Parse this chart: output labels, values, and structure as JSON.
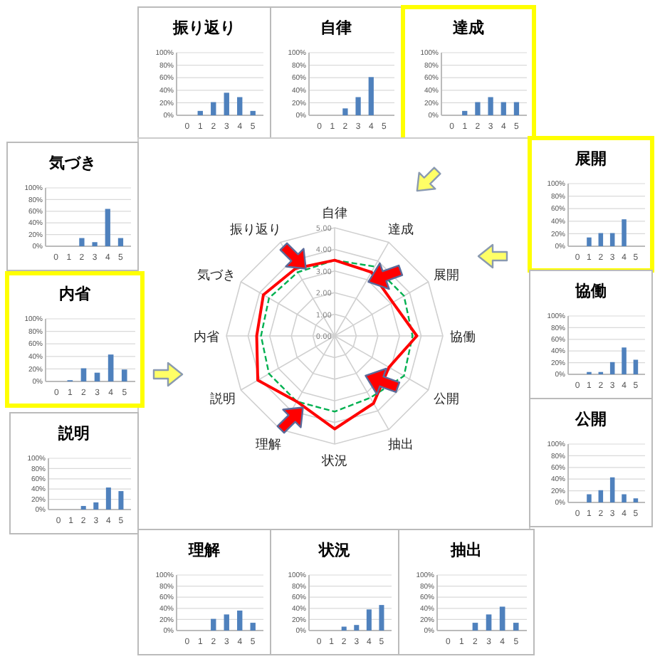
{
  "chart_data": [
    {
      "type": "bar",
      "title": "振り返り",
      "categories": [
        "0",
        "1",
        "2",
        "3",
        "4",
        "5"
      ],
      "values": [
        0,
        7,
        21,
        36,
        29,
        7
      ],
      "color": "#4f81bd",
      "ylim": [
        0,
        100
      ],
      "yticks": [
        {
          "value": 0,
          "label": "0%"
        },
        {
          "value": 20,
          "label": "20%"
        },
        {
          "value": 40,
          "label": "40%"
        },
        {
          "value": 60,
          "label": "60%"
        },
        {
          "value": 80,
          "label": "80%"
        },
        {
          "value": 100,
          "label": "100%"
        }
      ],
      "grid": "y"
    },
    {
      "type": "bar",
      "title": "自律",
      "categories": [
        "0",
        "1",
        "2",
        "3",
        "4",
        "5"
      ],
      "values": [
        0,
        0,
        11,
        29,
        61,
        0
      ],
      "color": "#4f81bd",
      "ylim": [
        0,
        100
      ],
      "yticks": [
        {
          "value": 0,
          "label": "0%"
        },
        {
          "value": 20,
          "label": "20%"
        },
        {
          "value": 40,
          "label": "40%"
        },
        {
          "value": 60,
          "label": "60%"
        },
        {
          "value": 80,
          "label": "80%"
        },
        {
          "value": 100,
          "label": "100%"
        }
      ],
      "grid": "y"
    },
    {
      "type": "bar",
      "title": "達成",
      "categories": [
        "0",
        "1",
        "2",
        "3",
        "4",
        "5"
      ],
      "values": [
        0,
        7,
        21,
        29,
        21,
        21
      ],
      "color": "#4f81bd",
      "ylim": [
        0,
        100
      ],
      "yticks": [
        {
          "value": 0,
          "label": "0%"
        },
        {
          "value": 20,
          "label": "20%"
        },
        {
          "value": 40,
          "label": "40%"
        },
        {
          "value": 60,
          "label": "60%"
        },
        {
          "value": 80,
          "label": "80%"
        },
        {
          "value": 100,
          "label": "100%"
        }
      ],
      "grid": "y"
    },
    {
      "type": "radar",
      "categories": [
        "自律",
        "達成",
        "展開",
        "協働",
        "公開",
        "抽出",
        "状況",
        "理解",
        "説明",
        "内省",
        "気づき",
        "振り返り"
      ],
      "ylim": [
        0,
        5
      ],
      "yticks": [
        {
          "value": 0,
          "label": "0.00"
        },
        {
          "value": 1,
          "label": "1.00"
        },
        {
          "value": 2,
          "label": "2.00"
        },
        {
          "value": 3,
          "label": "3.00"
        },
        {
          "value": 4,
          "label": "4.00"
        },
        {
          "value": 5,
          "label": "5.00"
        }
      ],
      "grid": true,
      "marker": "none",
      "series": [
        {
          "color": "#00b050",
          "line_style": "dashed",
          "values": [
            3.5,
            3.7,
            3.7,
            3.6,
            3.7,
            3.3,
            3.5,
            3.5,
            3.5,
            3.4,
            3.5,
            3.4
          ]
        },
        {
          "color": "#ff0000",
          "line_style": "solid",
          "values": [
            3.5,
            3.4,
            3.1,
            3.8,
            2.9,
            3.6,
            4.3,
            3.5,
            4.1,
            3.6,
            3.8,
            3.6
          ]
        }
      ]
    },
    {
      "type": "bar",
      "title": "気づき",
      "categories": [
        "0",
        "1",
        "2",
        "3",
        "4",
        "5"
      ],
      "values": [
        0,
        0,
        14,
        7,
        64,
        14
      ],
      "color": "#4f81bd",
      "ylim": [
        0,
        100
      ],
      "yticks": [
        {
          "value": 0,
          "label": "0%"
        },
        {
          "value": 20,
          "label": "20%"
        },
        {
          "value": 40,
          "label": "40%"
        },
        {
          "value": 60,
          "label": "60%"
        },
        {
          "value": 80,
          "label": "80%"
        },
        {
          "value": 100,
          "label": "100%"
        }
      ],
      "grid": "y"
    },
    {
      "type": "bar",
      "title": "内省",
      "categories": [
        "0",
        "1",
        "2",
        "3",
        "4",
        "5"
      ],
      "values": [
        0,
        2,
        21,
        14,
        43,
        19
      ],
      "color": "#4f81bd",
      "ylim": [
        0,
        100
      ],
      "yticks": [
        {
          "value": 0,
          "label": "0%"
        },
        {
          "value": 20,
          "label": "20%"
        },
        {
          "value": 40,
          "label": "40%"
        },
        {
          "value": 60,
          "label": "60%"
        },
        {
          "value": 80,
          "label": "80%"
        },
        {
          "value": 100,
          "label": "100%"
        }
      ],
      "grid": "y"
    },
    {
      "type": "bar",
      "title": "説明",
      "categories": [
        "0",
        "1",
        "2",
        "3",
        "4",
        "5"
      ],
      "values": [
        0,
        0,
        7,
        14,
        43,
        36
      ],
      "color": "#4f81bd",
      "ylim": [
        0,
        100
      ],
      "yticks": [
        {
          "value": 0,
          "label": "0%"
        },
        {
          "value": 20,
          "label": "20%"
        },
        {
          "value": 40,
          "label": "40%"
        },
        {
          "value": 60,
          "label": "60%"
        },
        {
          "value": 80,
          "label": "80%"
        },
        {
          "value": 100,
          "label": "100%"
        }
      ],
      "grid": "y"
    },
    {
      "type": "bar",
      "title": "展開",
      "categories": [
        "0",
        "1",
        "2",
        "3",
        "4",
        "5"
      ],
      "values": [
        0,
        14,
        21,
        21,
        43,
        0
      ],
      "color": "#4f81bd",
      "ylim": [
        0,
        100
      ],
      "yticks": [
        {
          "value": 0,
          "label": "0%"
        },
        {
          "value": 20,
          "label": "20%"
        },
        {
          "value": 40,
          "label": "40%"
        },
        {
          "value": 60,
          "label": "60%"
        },
        {
          "value": 80,
          "label": "80%"
        },
        {
          "value": 100,
          "label": "100%"
        }
      ],
      "grid": "y"
    },
    {
      "type": "bar",
      "title": "協働",
      "categories": [
        "0",
        "1",
        "2",
        "3",
        "4",
        "5"
      ],
      "values": [
        0,
        4,
        4,
        21,
        46,
        25
      ],
      "color": "#4f81bd",
      "ylim": [
        0,
        100
      ],
      "yticks": [
        {
          "value": 0,
          "label": "0%"
        },
        {
          "value": 20,
          "label": "20%"
        },
        {
          "value": 40,
          "label": "40%"
        },
        {
          "value": 60,
          "label": "60%"
        },
        {
          "value": 80,
          "label": "80%"
        },
        {
          "value": 100,
          "label": "100%"
        }
      ],
      "grid": "y"
    },
    {
      "type": "bar",
      "title": "公開",
      "categories": [
        "0",
        "1",
        "2",
        "3",
        "4",
        "5"
      ],
      "values": [
        0,
        14,
        21,
        43,
        14,
        7
      ],
      "color": "#4f81bd",
      "ylim": [
        0,
        100
      ],
      "yticks": [
        {
          "value": 0,
          "label": "0%"
        },
        {
          "value": 20,
          "label": "20%"
        },
        {
          "value": 40,
          "label": "40%"
        },
        {
          "value": 60,
          "label": "60%"
        },
        {
          "value": 80,
          "label": "80%"
        },
        {
          "value": 100,
          "label": "100%"
        }
      ],
      "grid": "y"
    },
    {
      "type": "bar",
      "title": "理解",
      "categories": [
        "0",
        "1",
        "2",
        "3",
        "4",
        "5"
      ],
      "values": [
        0,
        0,
        21,
        29,
        36,
        14
      ],
      "color": "#4f81bd",
      "ylim": [
        0,
        100
      ],
      "yticks": [
        {
          "value": 0,
          "label": "0%"
        },
        {
          "value": 20,
          "label": "20%"
        },
        {
          "value": 40,
          "label": "40%"
        },
        {
          "value": 60,
          "label": "60%"
        },
        {
          "value": 80,
          "label": "80%"
        },
        {
          "value": 100,
          "label": "100%"
        }
      ],
      "grid": "y"
    },
    {
      "type": "bar",
      "title": "状況",
      "categories": [
        "0",
        "1",
        "2",
        "3",
        "4",
        "5"
      ],
      "values": [
        0,
        0,
        7,
        10,
        38,
        46
      ],
      "color": "#4f81bd",
      "ylim": [
        0,
        100
      ],
      "yticks": [
        {
          "value": 0,
          "label": "0%"
        },
        {
          "value": 20,
          "label": "20%"
        },
        {
          "value": 40,
          "label": "40%"
        },
        {
          "value": 60,
          "label": "60%"
        },
        {
          "value": 80,
          "label": "80%"
        },
        {
          "value": 100,
          "label": "100%"
        }
      ],
      "grid": "y"
    },
    {
      "type": "bar",
      "title": "抽出",
      "categories": [
        "0",
        "1",
        "2",
        "3",
        "4",
        "5"
      ],
      "values": [
        0,
        0,
        14,
        29,
        43,
        14
      ],
      "color": "#4f81bd",
      "ylim": [
        0,
        100
      ],
      "yticks": [
        {
          "value": 0,
          "label": "0%"
        },
        {
          "value": 20,
          "label": "20%"
        },
        {
          "value": 40,
          "label": "40%"
        },
        {
          "value": 60,
          "label": "60%"
        },
        {
          "value": 80,
          "label": "80%"
        },
        {
          "value": 100,
          "label": "100%"
        }
      ],
      "grid": "y"
    }
  ]
}
